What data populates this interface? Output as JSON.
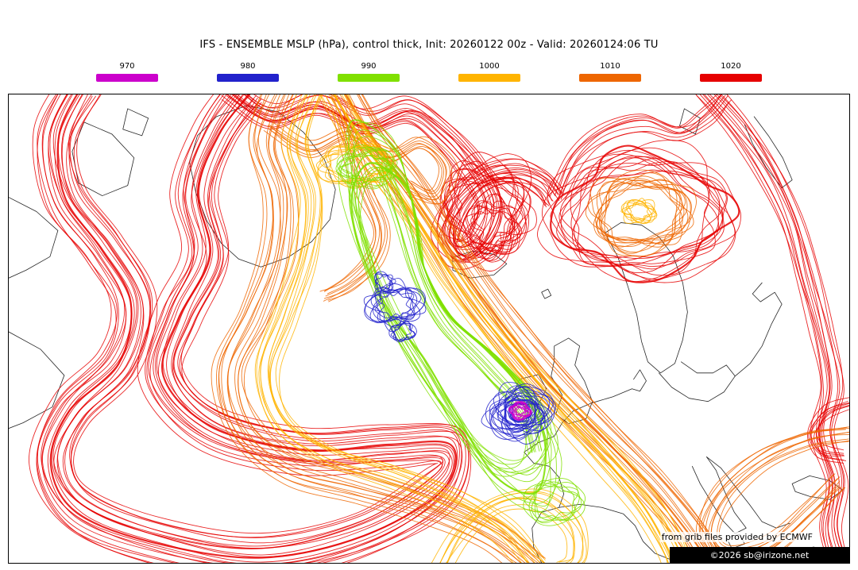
{
  "title": "IFS - ENSEMBLE MSLP (hPa), control thick, Init: 20260122 00z - Valid: 20260124:06 TU",
  "legend": {
    "items": [
      {
        "label": "970",
        "color": "#cc00cc"
      },
      {
        "label": "980",
        "color": "#2222cc"
      },
      {
        "label": "990",
        "color": "#80e000"
      },
      {
        "label": "1000",
        "color": "#ffb400"
      },
      {
        "label": "1010",
        "color": "#ee6600"
      },
      {
        "label": "1020",
        "color": "#e60000"
      }
    ]
  },
  "map": {
    "background": "#ffffff",
    "border_color": "#000000",
    "coastline_color": "#1a1a1a",
    "levels": [
      "970",
      "980",
      "990",
      "1000",
      "1010",
      "1020"
    ]
  },
  "credits": {
    "source": "from grib files provided by ECMWF",
    "copyright": "©2026 sb@irizone.net",
    "bar_bg": "#000000",
    "bar_fg": "#ffffff"
  }
}
